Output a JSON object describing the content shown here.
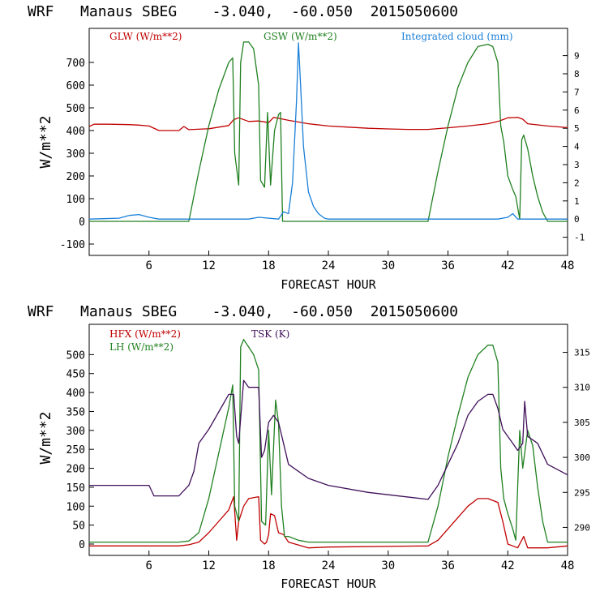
{
  "chart_data": [
    {
      "type": "line",
      "title": "WRF   Manaus SBEG    -3.040,  -60.050  2015050600",
      "xlabel": "FORECAST HOUR",
      "ylabel": "W/m**2",
      "xlim": [
        0,
        48
      ],
      "ylim": [
        -150,
        850
      ],
      "y2lim": [
        -2,
        10.5
      ],
      "xticks": [
        6,
        12,
        18,
        24,
        30,
        36,
        42,
        48
      ],
      "yticks": [
        -100,
        0,
        100,
        200,
        300,
        400,
        500,
        600,
        700
      ],
      "y2ticks": [
        -1,
        0,
        1,
        2,
        3,
        4,
        5,
        6,
        7,
        8,
        9
      ],
      "series": [
        {
          "name": "GLW (W/m**2)",
          "color": "#c00000",
          "axis": "left",
          "x": [
            0,
            0.5,
            2,
            4,
            5,
            6,
            7,
            8,
            9,
            9.5,
            10,
            12,
            14,
            14.5,
            15,
            16,
            17,
            18,
            18.5,
            19,
            20,
            22,
            24,
            26,
            28,
            30,
            32,
            34,
            36,
            38,
            40,
            41,
            41.5,
            42,
            43,
            43.5,
            44,
            46,
            48
          ],
          "y": [
            418,
            428,
            428,
            426,
            424,
            420,
            400,
            400,
            400,
            418,
            404,
            408,
            422,
            448,
            456,
            440,
            442,
            435,
            458,
            454,
            445,
            430,
            420,
            415,
            410,
            407,
            405,
            405,
            412,
            420,
            430,
            440,
            448,
            456,
            458,
            450,
            430,
            420,
            413
          ]
        },
        {
          "name": "GSW (W/m**2)",
          "color": "#208020",
          "axis": "left",
          "x": [
            0,
            10,
            11,
            12,
            13,
            14,
            14.4,
            14.6,
            15,
            15.2,
            15.5,
            16,
            16.5,
            17,
            17.2,
            17.6,
            17.9,
            18.2,
            18.6,
            19,
            19.2,
            19.4,
            20,
            34,
            35,
            36,
            37,
            38,
            39,
            40,
            40.5,
            41,
            41.3,
            41.6,
            42,
            42.5,
            42.8,
            43,
            43.2,
            43.4,
            43.6,
            44,
            44.5,
            45,
            45.5,
            46,
            48
          ],
          "y": [
            0,
            0,
            220,
            420,
            580,
            700,
            720,
            300,
            160,
            700,
            790,
            790,
            760,
            600,
            180,
            150,
            480,
            160,
            400,
            470,
            480,
            0,
            0,
            0,
            220,
            420,
            590,
            700,
            770,
            780,
            770,
            700,
            420,
            350,
            200,
            140,
            110,
            60,
            10,
            360,
            380,
            320,
            200,
            110,
            40,
            0,
            0
          ]
        },
        {
          "name": "Integrated cloud (mm)",
          "color": "#1a7fd8",
          "axis": "right",
          "x": [
            0,
            3,
            4,
            5,
            6,
            7,
            10,
            16,
            17,
            19,
            19.5,
            20,
            20.4,
            20.8,
            21,
            21.2,
            21.5,
            22,
            22.5,
            23,
            23.6,
            24,
            41,
            42,
            42.5,
            43,
            48
          ],
          "y": [
            0,
            0.05,
            0.2,
            0.25,
            0.1,
            0,
            0,
            0,
            0.1,
            0,
            0.4,
            0.3,
            2,
            6.5,
            9.7,
            7.5,
            4,
            1.5,
            0.7,
            0.3,
            0.05,
            0,
            0,
            0.1,
            0.3,
            0,
            0
          ]
        }
      ]
    },
    {
      "type": "line",
      "title": "WRF   Manaus SBEG    -3.040,  -60.050  2015050600",
      "xlabel": "FORECAST HOUR",
      "ylabel": "W/m**2",
      "xlim": [
        0,
        48
      ],
      "ylim": [
        -30,
        580
      ],
      "y2lim": [
        286,
        319
      ],
      "xticks": [
        6,
        12,
        18,
        24,
        30,
        36,
        42,
        48
      ],
      "yticks": [
        0,
        50,
        100,
        150,
        200,
        250,
        300,
        350,
        400,
        450,
        500
      ],
      "y2ticks": [
        290,
        295,
        300,
        305,
        310,
        315
      ],
      "series": [
        {
          "name": "HFX (W/m**2)",
          "color": "#c00000",
          "axis": "left",
          "x": [
            0,
            2,
            6,
            9,
            10,
            11,
            12,
            13,
            14,
            14.5,
            14.8,
            15,
            15.5,
            16,
            17,
            17.2,
            17.6,
            17.8,
            18,
            18.2,
            18.6,
            19,
            19.5,
            20,
            22,
            24,
            34,
            35,
            36,
            37,
            38,
            39,
            40,
            41,
            41.5,
            42,
            42.5,
            43,
            43.6,
            44,
            46,
            48
          ],
          "y": [
            -5,
            -5,
            -5,
            -5,
            -2,
            5,
            30,
            60,
            90,
            125,
            10,
            60,
            100,
            120,
            125,
            10,
            0,
            5,
            25,
            80,
            75,
            30,
            25,
            5,
            -10,
            -8,
            -5,
            10,
            40,
            70,
            100,
            120,
            120,
            110,
            60,
            0,
            -5,
            -10,
            20,
            -10,
            -10,
            -5
          ]
        },
        {
          "name": "LH (W/m**2)",
          "color": "#208020",
          "axis": "left",
          "x": [
            0,
            2,
            6,
            9,
            10,
            11,
            12,
            13,
            14,
            14.4,
            14.6,
            15,
            15.2,
            15.5,
            16,
            16.5,
            17,
            17.3,
            17.7,
            18,
            18.3,
            18.7,
            19,
            19.3,
            19.6,
            20,
            21,
            22,
            24,
            34,
            35,
            36,
            37,
            38,
            39,
            40,
            40.5,
            41,
            41.3,
            41.6,
            42,
            42.5,
            42.8,
            43.2,
            43.5,
            44,
            44.5,
            45,
            45.5,
            46,
            48
          ],
          "y": [
            5,
            5,
            5,
            5,
            8,
            30,
            120,
            240,
            360,
            420,
            100,
            60,
            520,
            540,
            520,
            500,
            460,
            60,
            50,
            300,
            130,
            380,
            320,
            100,
            20,
            20,
            10,
            5,
            5,
            5,
            100,
            230,
            340,
            440,
            500,
            525,
            525,
            480,
            200,
            120,
            80,
            40,
            10,
            300,
            200,
            300,
            260,
            150,
            60,
            5,
            5
          ]
        },
        {
          "name": "TSK (K)",
          "color": "#40105a",
          "axis": "right",
          "x": [
            0,
            2,
            6,
            6.5,
            7,
            9,
            10,
            10.5,
            11,
            12,
            13,
            14,
            14.5,
            14.8,
            15,
            15.5,
            16,
            16.5,
            17,
            17.3,
            17.6,
            18,
            18.5,
            19,
            19.5,
            20,
            22,
            24,
            28,
            34,
            35,
            36,
            37,
            38,
            39,
            40,
            40.5,
            41,
            41.5,
            42,
            42.5,
            43,
            43.5,
            43.7,
            44,
            45,
            46,
            48
          ],
          "y": [
            296,
            296,
            296,
            294.5,
            294.5,
            294.5,
            296,
            298,
            302,
            304,
            306.5,
            309,
            309,
            303,
            302,
            311,
            310,
            310,
            310,
            300,
            301,
            305,
            306,
            305,
            302,
            299,
            297,
            296,
            295,
            294,
            296,
            299,
            302,
            306,
            308,
            309,
            309,
            307,
            304,
            303,
            302,
            301,
            302,
            308,
            303,
            302,
            299,
            297.5
          ]
        }
      ]
    }
  ]
}
